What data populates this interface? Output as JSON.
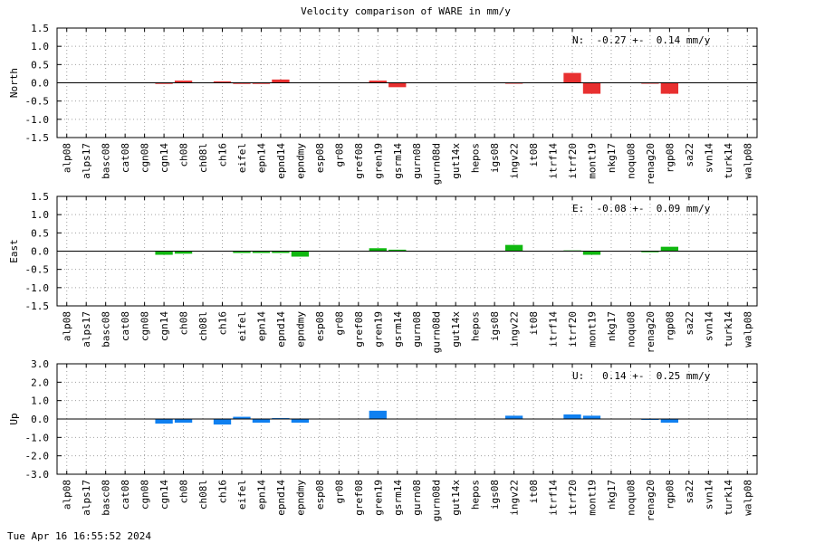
{
  "title": "Velocity comparison of WARE in mm/y",
  "footer_timestamp": "Tue Apr 16 16:55:52 2024",
  "chart_data": [
    {
      "type": "bar",
      "ylabel": "North",
      "color": "#e83030",
      "ylim": [
        -1.5,
        1.5
      ],
      "yticks": [
        "1.5",
        "1.0",
        "0.5",
        "0.0",
        "-0.5",
        "-1.0",
        "-1.5"
      ],
      "ytick_values": [
        1.5,
        1.0,
        0.5,
        0.0,
        -0.5,
        -1.0,
        -1.5
      ],
      "annotation": "N:  -0.27 +-  0.14 mm/y",
      "categories": [
        "alp08",
        "alps17",
        "basc08",
        "cat08",
        "cgn08",
        "cgn14",
        "ch08",
        "ch08l",
        "ch16",
        "eifel",
        "epn14",
        "epnd14",
        "epndmy",
        "esp08",
        "gr08",
        "gref08",
        "gren19",
        "gsrm14",
        "gurn08",
        "gurn08d",
        "gut14x",
        "hepos",
        "igs08",
        "ingv22",
        "it08",
        "itrf14",
        "itrf20",
        "mont19",
        "nkg17",
        "noqu08",
        "renag20",
        "rgp08",
        "sa22",
        "svn14",
        "turk14",
        "walp08"
      ],
      "values": [
        0,
        0,
        0,
        0,
        0,
        -0.03,
        0.06,
        0,
        0.04,
        -0.03,
        -0.03,
        0.09,
        0,
        0,
        0,
        0,
        0.06,
        -0.12,
        0,
        0,
        0,
        0,
        0,
        -0.02,
        0,
        0,
        0.27,
        -0.3,
        0,
        0,
        -0.02,
        -0.3,
        0,
        0,
        0,
        0
      ]
    },
    {
      "type": "bar",
      "ylabel": "East",
      "color": "#10b810",
      "ylim": [
        -1.5,
        1.5
      ],
      "yticks": [
        "1.5",
        "1.0",
        "0.5",
        "0.0",
        "-0.5",
        "-1.0",
        "-1.5"
      ],
      "ytick_values": [
        1.5,
        1.0,
        0.5,
        0.0,
        -0.5,
        -1.0,
        -1.5
      ],
      "annotation": "E:  -0.08 +-  0.09 mm/y",
      "categories": [
        "alp08",
        "alps17",
        "basc08",
        "cat08",
        "cgn08",
        "cgn14",
        "ch08",
        "ch08l",
        "ch16",
        "eifel",
        "epn14",
        "epnd14",
        "epndmy",
        "esp08",
        "gr08",
        "gref08",
        "gren19",
        "gsrm14",
        "gurn08",
        "gurn08d",
        "gut14x",
        "hepos",
        "igs08",
        "ingv22",
        "it08",
        "itrf14",
        "itrf20",
        "mont19",
        "nkg17",
        "noqu08",
        "renag20",
        "rgp08",
        "sa22",
        "svn14",
        "turk14",
        "walp08"
      ],
      "values": [
        0,
        0,
        0,
        0,
        0,
        -0.1,
        -0.07,
        0,
        0,
        -0.05,
        -0.05,
        -0.05,
        -0.15,
        0,
        0,
        0,
        0.08,
        0.04,
        0,
        0,
        0,
        0,
        0,
        0.17,
        0,
        0,
        0.02,
        -0.1,
        0,
        0,
        -0.03,
        0.12,
        0,
        0,
        0,
        0
      ]
    },
    {
      "type": "bar",
      "ylabel": "Up",
      "color": "#1080f0",
      "ylim": [
        -3.0,
        3.0
      ],
      "yticks": [
        "3.0",
        "2.0",
        "1.0",
        "0.0",
        "-1.0",
        "-2.0",
        "-3.0"
      ],
      "ytick_values": [
        3.0,
        2.0,
        1.0,
        0.0,
        -1.0,
        -2.0,
        -3.0
      ],
      "annotation": "U:   0.14 +-  0.25 mm/y",
      "categories": [
        "alp08",
        "alps17",
        "basc08",
        "cat08",
        "cgn08",
        "cgn14",
        "ch08",
        "ch08l",
        "ch16",
        "eifel",
        "epn14",
        "epnd14",
        "epndmy",
        "esp08",
        "gr08",
        "gref08",
        "gren19",
        "gsrm14",
        "gurn08",
        "gurn08d",
        "gut14x",
        "hepos",
        "igs08",
        "ingv22",
        "it08",
        "itrf14",
        "itrf20",
        "mont19",
        "nkg17",
        "noqu08",
        "renag20",
        "rgp08",
        "sa22",
        "svn14",
        "turk14",
        "walp08"
      ],
      "values": [
        0,
        0,
        0,
        0,
        0,
        -0.25,
        -0.2,
        0,
        -0.3,
        0.12,
        -0.2,
        0.05,
        -0.2,
        0,
        0,
        0,
        0.45,
        0,
        0,
        0,
        0,
        0,
        0,
        0.18,
        0,
        0,
        0.25,
        0.18,
        0,
        0,
        -0.05,
        -0.2,
        0,
        0,
        0,
        0
      ]
    }
  ]
}
